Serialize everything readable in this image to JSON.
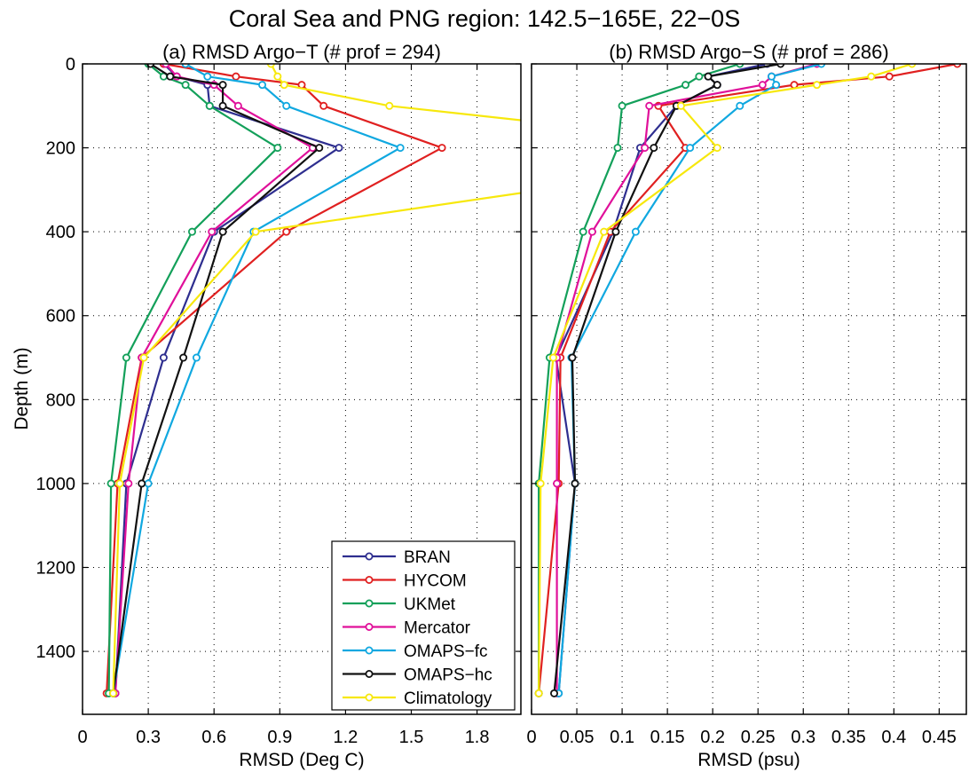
{
  "suptitle": "Coral Sea and PNG region: 142.5−165E, 22−0S",
  "chart_data": [
    {
      "type": "line",
      "title": "(a) RMSD Argo−T (# prof = 294)",
      "xlabel": "RMSD (Deg C)",
      "ylabel": "Depth (m)",
      "xlim": [
        0,
        2.0
      ],
      "ylim": [
        1550,
        0
      ],
      "y_reversed": true,
      "grid": true,
      "xticks": [
        0,
        0.3,
        0.6,
        0.9,
        1.2,
        1.5,
        1.8
      ],
      "xtick_labels": [
        "0",
        "0.3",
        "0.6",
        "0.9",
        "1.2",
        "1.5",
        "1.8"
      ],
      "yticks": [
        0,
        200,
        400,
        600,
        800,
        1000,
        1200,
        1400
      ],
      "ytick_labels": [
        "0",
        "200",
        "400",
        "600",
        "800",
        "1000",
        "1200",
        "1400"
      ],
      "series": [
        {
          "name": "BRAN",
          "color": "#2e2e8f",
          "points": [
            [
              0.37,
              0
            ],
            [
              0.43,
              30
            ],
            [
              0.57,
              50
            ],
            [
              0.58,
              100
            ],
            [
              1.17,
              200
            ],
            [
              0.6,
              400
            ],
            [
              0.37,
              700
            ],
            [
              0.2,
              1000
            ],
            [
              0.15,
              1500
            ]
          ]
        },
        {
          "name": "HYCOM",
          "color": "#e02020",
          "points": [
            [
              0.37,
              0
            ],
            [
              0.7,
              30
            ],
            [
              1.0,
              50
            ],
            [
              1.1,
              100
            ],
            [
              1.64,
              200
            ],
            [
              0.93,
              400
            ],
            [
              0.27,
              700
            ],
            [
              0.16,
              1000
            ],
            [
              0.11,
              1500
            ]
          ]
        },
        {
          "name": "UKMet",
          "color": "#13a05a",
          "points": [
            [
              0.3,
              0
            ],
            [
              0.37,
              30
            ],
            [
              0.47,
              50
            ],
            [
              0.58,
              100
            ],
            [
              0.89,
              200
            ],
            [
              0.5,
              400
            ],
            [
              0.2,
              700
            ],
            [
              0.13,
              1000
            ],
            [
              0.12,
              1500
            ]
          ]
        },
        {
          "name": "Mercator",
          "color": "#e0109a",
          "points": [
            [
              0.38,
              0
            ],
            [
              0.43,
              30
            ],
            [
              0.6,
              50
            ],
            [
              0.71,
              100
            ],
            [
              1.05,
              200
            ],
            [
              0.59,
              400
            ],
            [
              0.27,
              700
            ],
            [
              0.21,
              1000
            ],
            [
              0.15,
              1500
            ]
          ]
        },
        {
          "name": "OMAPS−fc",
          "color": "#10a8e0",
          "points": [
            [
              0.47,
              0
            ],
            [
              0.57,
              30
            ],
            [
              0.82,
              50
            ],
            [
              0.93,
              100
            ],
            [
              1.45,
              200
            ],
            [
              0.78,
              400
            ],
            [
              0.52,
              700
            ],
            [
              0.3,
              1000
            ],
            [
              0.14,
              1500
            ]
          ]
        },
        {
          "name": "OMAPS−hc",
          "color": "#111111",
          "points": [
            [
              0.31,
              0
            ],
            [
              0.4,
              30
            ],
            [
              0.64,
              50
            ],
            [
              0.64,
              100
            ],
            [
              1.08,
              200
            ],
            [
              0.64,
              400
            ],
            [
              0.46,
              700
            ],
            [
              0.27,
              1000
            ],
            [
              0.14,
              1500
            ]
          ]
        },
        {
          "name": "Climatology",
          "color": "#f7e80c",
          "points": [
            [
              0.86,
              0
            ],
            [
              0.89,
              30
            ],
            [
              0.92,
              50
            ],
            [
              1.4,
              100
            ],
            [
              2.1,
              140
            ],
            [
              2.1,
              300
            ],
            [
              0.79,
              400
            ],
            [
              0.28,
              700
            ],
            [
              0.17,
              1000
            ],
            [
              0.14,
              1500
            ]
          ]
        }
      ],
      "legend": {
        "placement": "lower-right",
        "entries": [
          "BRAN",
          "HYCOM",
          "UKMet",
          "Mercator",
          "OMAPS−fc",
          "OMAPS−hc",
          "Climatology"
        ]
      }
    },
    {
      "type": "line",
      "title": "(b) RMSD Argo−S (# prof = 286)",
      "xlabel": "RMSD (psu)",
      "ylabel": "",
      "xlim": [
        0,
        0.48
      ],
      "ylim": [
        1550,
        0
      ],
      "y_reversed": true,
      "grid": true,
      "xticks": [
        0,
        0.05,
        0.1,
        0.15,
        0.2,
        0.25,
        0.3,
        0.35,
        0.4,
        0.45
      ],
      "xtick_labels": [
        "0",
        "0.05",
        "0.1",
        "0.15",
        "0.2",
        "0.25",
        "0.3",
        "0.35",
        "0.4",
        "0.45"
      ],
      "yticks": [
        0,
        200,
        400,
        600,
        800,
        1000,
        1200,
        1400
      ],
      "series": [
        {
          "name": "BRAN",
          "color": "#2e2e8f",
          "points": [
            [
              0.26,
              0
            ],
            [
              0.195,
              30
            ],
            [
              0.205,
              50
            ],
            [
              0.16,
              100
            ],
            [
              0.12,
              200
            ],
            [
              0.09,
              400
            ],
            [
              0.027,
              700
            ],
            [
              0.048,
              1000
            ],
            [
              0.03,
              1500
            ]
          ]
        },
        {
          "name": "HYCOM",
          "color": "#e02020",
          "points": [
            [
              0.47,
              0
            ],
            [
              0.395,
              30
            ],
            [
              0.29,
              50
            ],
            [
              0.14,
              100
            ],
            [
              0.17,
              200
            ],
            [
              0.087,
              400
            ],
            [
              0.032,
              700
            ],
            [
              0.03,
              1000
            ],
            [
              0.008,
              1500
            ]
          ]
        },
        {
          "name": "UKMet",
          "color": "#13a05a",
          "points": [
            [
              0.23,
              0
            ],
            [
              0.185,
              30
            ],
            [
              0.17,
              50
            ],
            [
              0.1,
              100
            ],
            [
              0.095,
              200
            ],
            [
              0.057,
              400
            ],
            [
              0.02,
              700
            ],
            [
              0.008,
              1000
            ],
            [
              0.008,
              1500
            ]
          ]
        },
        {
          "name": "Mercator",
          "color": "#e0109a",
          "points": [
            [
              0.315,
              0
            ],
            [
              0.265,
              30
            ],
            [
              0.255,
              50
            ],
            [
              0.13,
              100
            ],
            [
              0.125,
              200
            ],
            [
              0.067,
              400
            ],
            [
              0.028,
              700
            ],
            [
              0.028,
              1000
            ],
            [
              0.028,
              1500
            ]
          ]
        },
        {
          "name": "OMAPS−fc",
          "color": "#10a8e0",
          "points": [
            [
              0.32,
              0
            ],
            [
              0.265,
              30
            ],
            [
              0.27,
              50
            ],
            [
              0.23,
              100
            ],
            [
              0.175,
              200
            ],
            [
              0.115,
              400
            ],
            [
              0.044,
              700
            ],
            [
              0.048,
              1000
            ],
            [
              0.03,
              1500
            ]
          ]
        },
        {
          "name": "OMAPS−hc",
          "color": "#111111",
          "points": [
            [
              0.275,
              0
            ],
            [
              0.195,
              30
            ],
            [
              0.205,
              50
            ],
            [
              0.16,
              100
            ],
            [
              0.135,
              200
            ],
            [
              0.093,
              400
            ],
            [
              0.045,
              700
            ],
            [
              0.048,
              1000
            ],
            [
              0.025,
              1500
            ]
          ]
        },
        {
          "name": "Climatology",
          "color": "#f7e80c",
          "points": [
            [
              0.42,
              0
            ],
            [
              0.375,
              30
            ],
            [
              0.315,
              50
            ],
            [
              0.165,
              100
            ],
            [
              0.205,
              200
            ],
            [
              0.08,
              400
            ],
            [
              0.024,
              700
            ],
            [
              0.01,
              1000
            ],
            [
              0.008,
              1500
            ]
          ]
        }
      ]
    }
  ]
}
